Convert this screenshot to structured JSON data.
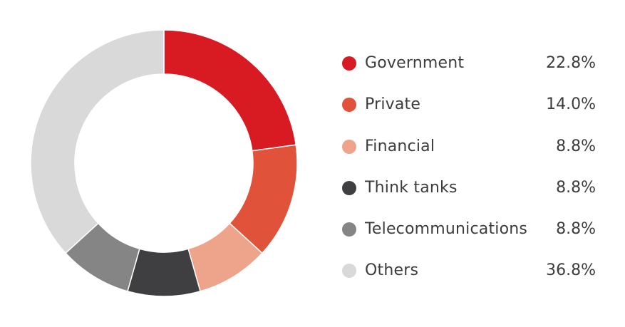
{
  "chart_data": {
    "type": "pie",
    "style": "donut",
    "categories": [
      "Government",
      "Private",
      "Financial",
      "Think tanks",
      "Telecommunications",
      "Others"
    ],
    "values": [
      22.8,
      14.0,
      8.8,
      8.8,
      8.8,
      36.8
    ],
    "value_labels": [
      "22.8%",
      "14.0%",
      "8.8%",
      "8.8%",
      "8.8%",
      "36.8%"
    ],
    "unit": "%",
    "colors": [
      "#d81b22",
      "#e0533a",
      "#eda48a",
      "#3f3f41",
      "#858586",
      "#d9d9d9"
    ],
    "start_angle_deg": 0,
    "direction": "clockwise",
    "legend_position": "right"
  }
}
